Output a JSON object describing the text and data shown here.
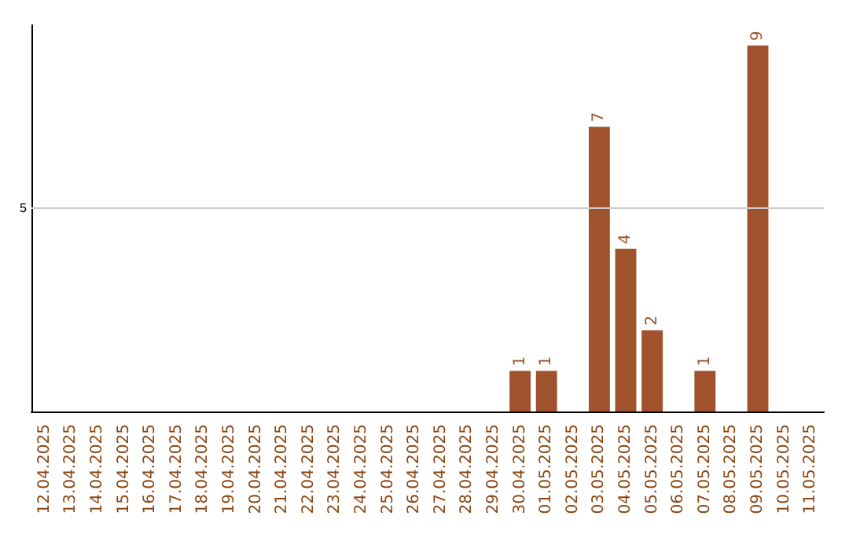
{
  "chart_data": {
    "type": "bar",
    "categories": [
      "12.04.2025",
      "13.04.2025",
      "14.04.2025",
      "15.04.2025",
      "16.04.2025",
      "17.04.2025",
      "18.04.2025",
      "19.04.2025",
      "20.04.2025",
      "21.04.2025",
      "22.04.2025",
      "23.04.2025",
      "24.04.2025",
      "25.04.2025",
      "26.04.2025",
      "27.04.2025",
      "28.04.2025",
      "29.04.2025",
      "30.04.2025",
      "01.05.2025",
      "02.05.2025",
      "03.05.2025",
      "04.05.2025",
      "05.05.2025",
      "06.05.2025",
      "07.05.2025",
      "08.05.2025",
      "09.05.2025",
      "10.05.2025",
      "11.05.2025"
    ],
    "values": [
      null,
      null,
      null,
      null,
      null,
      null,
      null,
      null,
      null,
      null,
      null,
      null,
      null,
      null,
      null,
      null,
      null,
      null,
      1,
      1,
      null,
      7,
      4,
      2,
      null,
      1,
      null,
      9,
      null,
      null
    ],
    "data_labels": true,
    "color": "#a0522d",
    "ylim": [
      0,
      9.5
    ],
    "ref_lines": [
      {
        "axis": "y",
        "value": 5,
        "label": "5",
        "color": "#cccccc"
      }
    ]
  }
}
